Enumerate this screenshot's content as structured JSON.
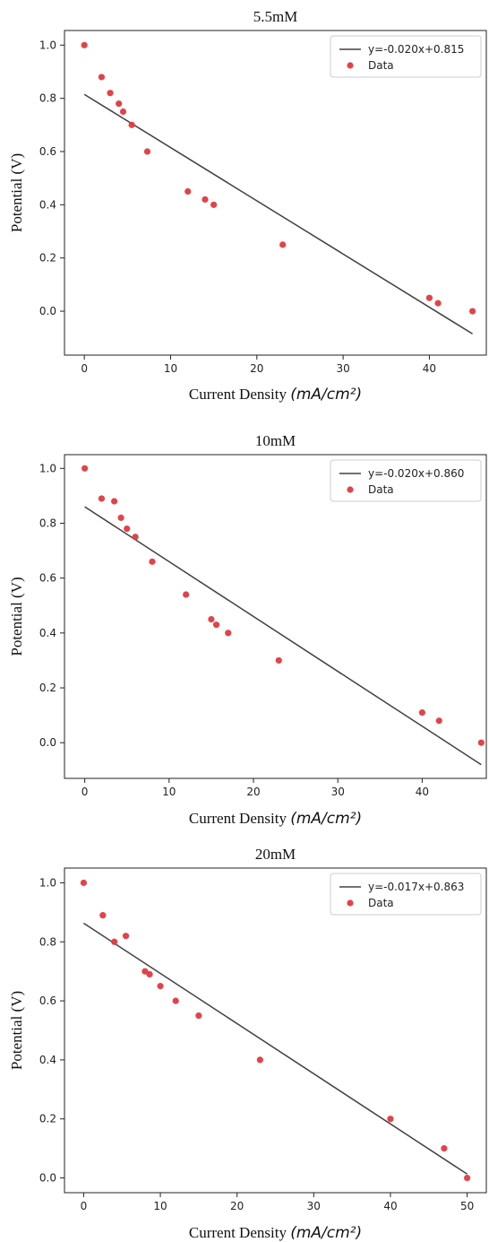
{
  "chart_data": [
    {
      "type": "scatter",
      "title": "5.5mM",
      "xlabel": "Current Density",
      "xlabel_math": "(mA/cm²)",
      "ylabel": "Potential (V)",
      "xlim": [
        -2.3,
        46.6
      ],
      "ylim": [
        -0.165,
        1.055
      ],
      "xticks": [
        0,
        10,
        20,
        30,
        40
      ],
      "yticks": [
        0.0,
        0.2,
        0.4,
        0.6,
        0.8,
        1.0
      ],
      "legend_position": "upper right",
      "series": [
        {
          "name": "y=-0.020x+0.815",
          "kind": "line",
          "x": [
            0,
            45
          ],
          "y": [
            0.815,
            -0.085
          ],
          "color": "#404040"
        },
        {
          "name": "Data",
          "kind": "scatter",
          "color": "#e0393e",
          "x": [
            0,
            2,
            3,
            4,
            4.5,
            5.5,
            7.3,
            12,
            14,
            15,
            23,
            40,
            41,
            45
          ],
          "y": [
            1.0,
            0.88,
            0.82,
            0.78,
            0.75,
            0.7,
            0.6,
            0.45,
            0.42,
            0.4,
            0.25,
            0.05,
            0.03,
            0.0
          ]
        }
      ]
    },
    {
      "type": "scatter",
      "title": "10mM",
      "xlabel": "Current Density",
      "xlabel_math": "(mA/cm²)",
      "ylabel": "Potential (V)",
      "xlim": [
        -2.4,
        47.6
      ],
      "ylim": [
        -0.13,
        1.05
      ],
      "xticks": [
        0,
        10,
        20,
        30,
        40
      ],
      "yticks": [
        0.0,
        0.2,
        0.4,
        0.6,
        0.8,
        1.0
      ],
      "legend_position": "upper right",
      "series": [
        {
          "name": "y=-0.020x+0.860",
          "kind": "line",
          "x": [
            0,
            47
          ],
          "y": [
            0.86,
            -0.08
          ],
          "color": "#404040"
        },
        {
          "name": "Data",
          "kind": "scatter",
          "color": "#e0393e",
          "x": [
            0,
            2,
            3.5,
            4.3,
            5,
            6,
            8,
            12,
            15,
            15.6,
            17,
            23,
            40,
            42,
            47
          ],
          "y": [
            1.0,
            0.89,
            0.88,
            0.82,
            0.78,
            0.75,
            0.66,
            0.54,
            0.45,
            0.43,
            0.4,
            0.3,
            0.11,
            0.08,
            0.0
          ]
        }
      ]
    },
    {
      "type": "scatter",
      "title": "20mM",
      "xlabel": "Current Density",
      "xlabel_math": "(mA/cm²)",
      "ylabel": "Potential (V)",
      "xlim": [
        -2.5,
        52.5
      ],
      "ylim": [
        -0.05,
        1.05
      ],
      "xticks": [
        0,
        10,
        20,
        30,
        40,
        50
      ],
      "yticks": [
        0.0,
        0.2,
        0.4,
        0.6,
        0.8,
        1.0
      ],
      "legend_position": "upper right",
      "series": [
        {
          "name": "y=-0.017x+0.863",
          "kind": "line",
          "x": [
            0,
            50
          ],
          "y": [
            0.863,
            0.013
          ],
          "color": "#404040"
        },
        {
          "name": "Data",
          "kind": "scatter",
          "color": "#e0393e",
          "x": [
            0,
            2.5,
            4,
            5.5,
            8,
            8.6,
            10,
            12,
            15,
            23,
            40,
            47,
            50
          ],
          "y": [
            1.0,
            0.89,
            0.8,
            0.82,
            0.7,
            0.69,
            0.65,
            0.6,
            0.55,
            0.4,
            0.2,
            0.1,
            0.0
          ]
        }
      ]
    }
  ]
}
